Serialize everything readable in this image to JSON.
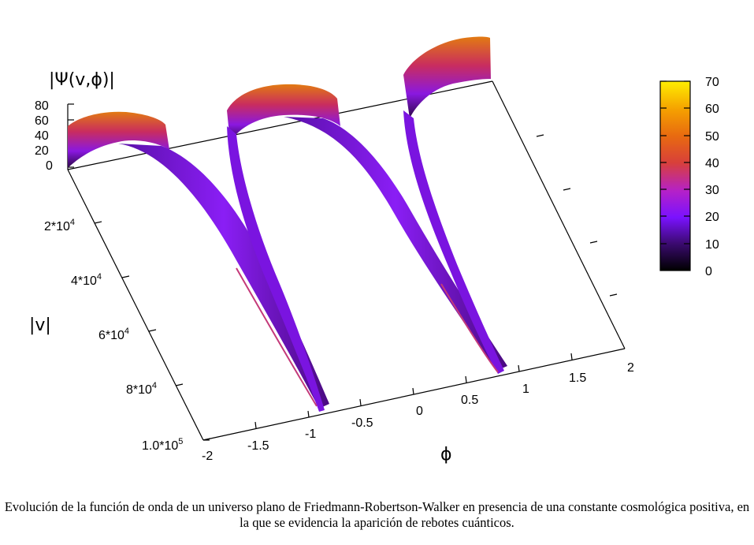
{
  "chart_data": {
    "type": "surface3d",
    "zlabel": "|Ψ(v,ϕ)|",
    "ylabel": "|v|",
    "xlabel": "ϕ",
    "xlim": [
      -2,
      2
    ],
    "ylim": [
      0,
      100000
    ],
    "zlim": [
      0,
      80
    ],
    "x_ticks": [
      "-2",
      "-1.5",
      "-1",
      "-0.5",
      "0",
      "0.5",
      "1",
      "1.5",
      "2"
    ],
    "y_ticks": [
      "2*10",
      "4*10",
      "6*10",
      "8*10",
      "1.0*10"
    ],
    "y_tick_exponents": [
      "4",
      "4",
      "4",
      "4",
      "5"
    ],
    "z_ticks": [
      "0",
      "20",
      "40",
      "60",
      "80"
    ],
    "colorbar": {
      "ticks": [
        "0",
        "10",
        "20",
        "30",
        "40",
        "50",
        "60",
        "70"
      ],
      "range": [
        0,
        70
      ],
      "palette": [
        "#000000",
        "#3a0a6e",
        "#7a12ff",
        "#b521c8",
        "#d8403a",
        "#e86a10",
        "#f5a000",
        "#ffee00"
      ]
    },
    "series": [
      {
        "trajectory": "left branch",
        "phi_at_v_max": -0.95,
        "phi_at_v_0": -2.0
      },
      {
        "trajectory": "middle branch",
        "phi_at_v_max": -0.95,
        "phi_at_v_0": -0.85
      },
      {
        "trajectory": "middle branch",
        "phi_at_v_max": 0.75,
        "phi_at_v_0": -0.55
      },
      {
        "trajectory": "right branch",
        "phi_at_v_max": 0.75,
        "phi_at_v_0": 0.95
      }
    ],
    "bounces": [
      {
        "phi": -0.95,
        "amplitude_max": 65
      },
      {
        "phi": 0.95,
        "amplitude_max": 70
      }
    ]
  },
  "caption": "Evolución de la función de onda de un universo plano de Friedmann-Robertson-Walker en presencia de una constante cosmológica positiva, en la que se evidencia la aparición de rebotes cuánticos."
}
